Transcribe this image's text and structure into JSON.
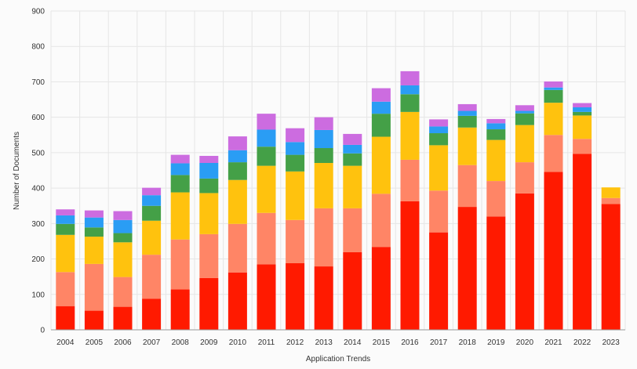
{
  "chart_data": {
    "type": "bar",
    "stacked": true,
    "xlabel": "Application Trends",
    "ylabel": "Number of Documents",
    "ylim": [
      0,
      900
    ],
    "yticks": [
      0,
      100,
      200,
      300,
      400,
      500,
      600,
      700,
      800,
      900
    ],
    "grid": true,
    "categories": [
      "2004",
      "2005",
      "2006",
      "2007",
      "2008",
      "2009",
      "2010",
      "2011",
      "2012",
      "2013",
      "2014",
      "2015",
      "2016",
      "2017",
      "2018",
      "2019",
      "2020",
      "2021",
      "2022",
      "2023"
    ],
    "series": [
      {
        "color": "#ff1a00",
        "values": [
          67,
          54,
          65,
          88,
          114,
          146,
          162,
          185,
          188,
          179,
          219,
          234,
          363,
          275,
          347,
          320,
          385,
          446,
          497,
          355
        ]
      },
      {
        "color": "#ff8566",
        "values": [
          96,
          132,
          84,
          124,
          141,
          124,
          137,
          145,
          122,
          164,
          124,
          150,
          117,
          118,
          118,
          100,
          88,
          104,
          42,
          17
        ]
      },
      {
        "color": "#ffc20e",
        "values": [
          105,
          77,
          98,
          96,
          133,
          116,
          124,
          133,
          137,
          128,
          120,
          161,
          135,
          128,
          106,
          116,
          105,
          91,
          66,
          30
        ]
      },
      {
        "color": "#44a047",
        "values": [
          31,
          26,
          26,
          42,
          49,
          41,
          50,
          54,
          47,
          42,
          35,
          65,
          50,
          34,
          33,
          30,
          33,
          36,
          10,
          0
        ]
      },
      {
        "color": "#2a9df4",
        "values": [
          24,
          28,
          37,
          30,
          33,
          44,
          34,
          48,
          36,
          51,
          24,
          34,
          25,
          19,
          14,
          17,
          7,
          7,
          13,
          0
        ]
      },
      {
        "color": "#cc6ce0",
        "values": [
          17,
          20,
          25,
          21,
          24,
          20,
          39,
          45,
          39,
          36,
          31,
          38,
          40,
          20,
          19,
          12,
          16,
          17,
          12,
          0
        ]
      }
    ]
  }
}
